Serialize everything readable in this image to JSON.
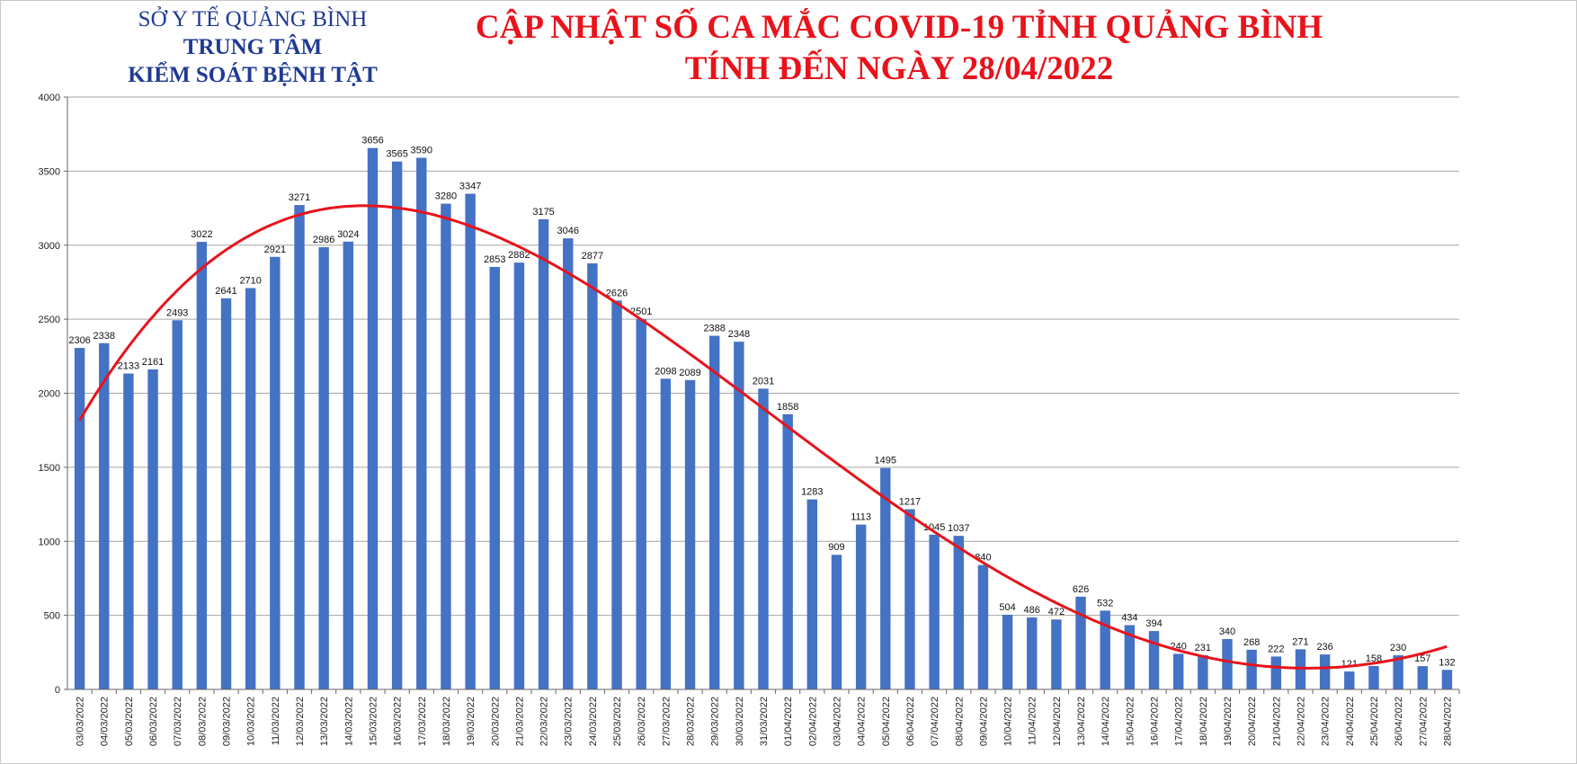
{
  "header": {
    "org_line1": "SỞ Y TẾ QUẢNG BÌNH",
    "org_line2": "TRUNG TÂM",
    "org_line3": "KIỂM SOÁT BỆNH TẬT",
    "title_line1": "CẬP NHẬT SỐ CA MẮC COVID-19 TỈNH QUẢNG BÌNH",
    "title_line2": "TÍNH ĐẾN NGÀY 28/04/2022"
  },
  "colors": {
    "bar": "#4472c4",
    "trend": "#e8131b",
    "title": "#e8131b",
    "org": "#1f3a93",
    "grid": "#a6a6a6"
  },
  "chart_data": {
    "type": "bar",
    "title": "CẬP NHẬT SỐ CA MẮC COVID-19 TỈNH QUẢNG BÌNH TÍNH ĐẾN NGÀY 28/04/2022",
    "categories": [
      "03/03/2022",
      "04/03/2022",
      "05/03/2022",
      "06/03/2022",
      "07/03/2022",
      "08/03/2022",
      "09/03/2022",
      "10/03/2022",
      "11/03/2022",
      "12/03/2022",
      "13/03/2022",
      "14/03/2022",
      "15/03/2022",
      "16/03/2022",
      "17/03/2022",
      "18/03/2022",
      "19/03/2022",
      "20/03/2022",
      "21/03/2022",
      "22/03/2022",
      "23/03/2022",
      "24/03/2022",
      "25/03/2022",
      "26/03/2022",
      "27/03/2022",
      "28/03/2022",
      "29/03/2022",
      "30/03/2022",
      "31/03/2022",
      "01/04/2022",
      "02/04/2022",
      "03/04/2022",
      "04/04/2022",
      "05/04/2022",
      "06/04/2022",
      "07/04/2022",
      "08/04/2022",
      "09/04/2022",
      "10/04/2022",
      "11/04/2022",
      "12/04/2022",
      "13/04/2022",
      "14/04/2022",
      "15/04/2022",
      "16/04/2022",
      "17/04/2022",
      "18/04/2022",
      "19/04/2022",
      "20/04/2022",
      "21/04/2022",
      "22/04/2022",
      "23/04/2022",
      "24/04/2022",
      "25/04/2022",
      "26/04/2022",
      "27/04/2022",
      "28/04/2022"
    ],
    "values": [
      2306,
      2338,
      2133,
      2161,
      2493,
      3022,
      2641,
      2710,
      2921,
      3271,
      2986,
      3024,
      3656,
      3565,
      3590,
      3280,
      3347,
      2853,
      2882,
      3175,
      3046,
      2877,
      2626,
      2501,
      2098,
      2089,
      2388,
      2348,
      2031,
      1858,
      1283,
      909,
      1113,
      1495,
      1217,
      1045,
      1037,
      840,
      504,
      486,
      472,
      626,
      532,
      434,
      394,
      240,
      231,
      340,
      268,
      222,
      271,
      236,
      121,
      158,
      230,
      157,
      132
    ],
    "ylim": [
      0,
      4000
    ],
    "yticks": [
      0,
      500,
      1000,
      1500,
      2000,
      2500,
      3000,
      3500,
      4000
    ],
    "trendline": "polynomial",
    "grid": true,
    "legend": "none",
    "xlabel": "",
    "ylabel": ""
  }
}
